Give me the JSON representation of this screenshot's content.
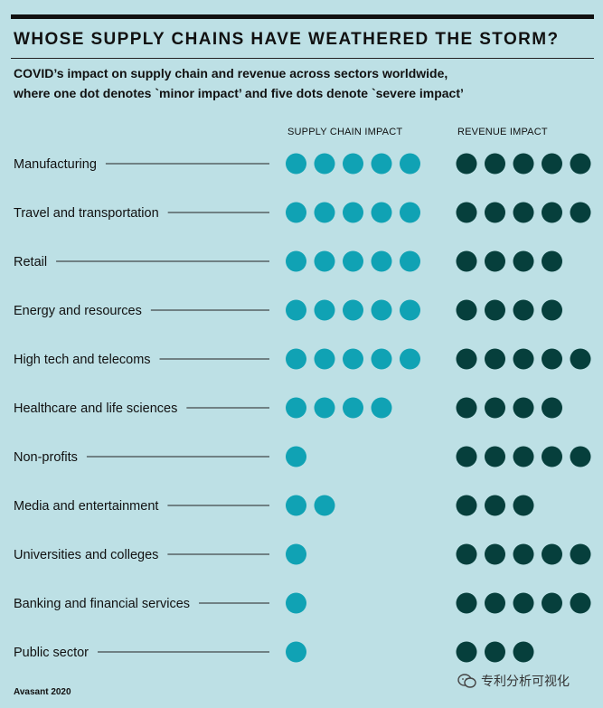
{
  "header": {
    "title": "WHOSE SUPPLY CHAINS HAVE WEATHERED THE STORM?",
    "subtitle_line1": "COVID’s impact on supply chain and revenue across sectors worldwide,",
    "subtitle_line2": "where one dot denotes `minor impact’ and five dots denote `severe impact’"
  },
  "footer": {
    "source": "Avasant 2020"
  },
  "watermark": {
    "text": "专利分析可视化"
  },
  "colors": {
    "supply": "#10a2b4",
    "revenue": "#063f3c",
    "background": "#bde0e5"
  },
  "chart_data": {
    "type": "dot-matrix",
    "title": "WHOSE SUPPLY CHAINS HAVE WEATHERED THE STORM?",
    "scale": {
      "min": 1,
      "max": 5,
      "min_label": "minor impact",
      "max_label": "severe impact"
    },
    "categories": [
      "Manufacturing",
      "Travel and transportation",
      "Retail",
      "Energy and resources",
      "High tech and telecoms",
      "Healthcare and life sciences",
      "Non-profits",
      "Media and entertainment",
      "Universities and colleges",
      "Banking and financial services",
      "Public sector"
    ],
    "series": [
      {
        "name": "SUPPLY CHAIN IMPACT",
        "values": [
          5,
          5,
          5,
          5,
          5,
          4,
          1,
          2,
          1,
          1,
          1
        ]
      },
      {
        "name": "REVENUE IMPACT",
        "values": [
          5,
          5,
          4,
          4,
          5,
          4,
          5,
          3,
          5,
          5,
          3
        ]
      }
    ]
  }
}
